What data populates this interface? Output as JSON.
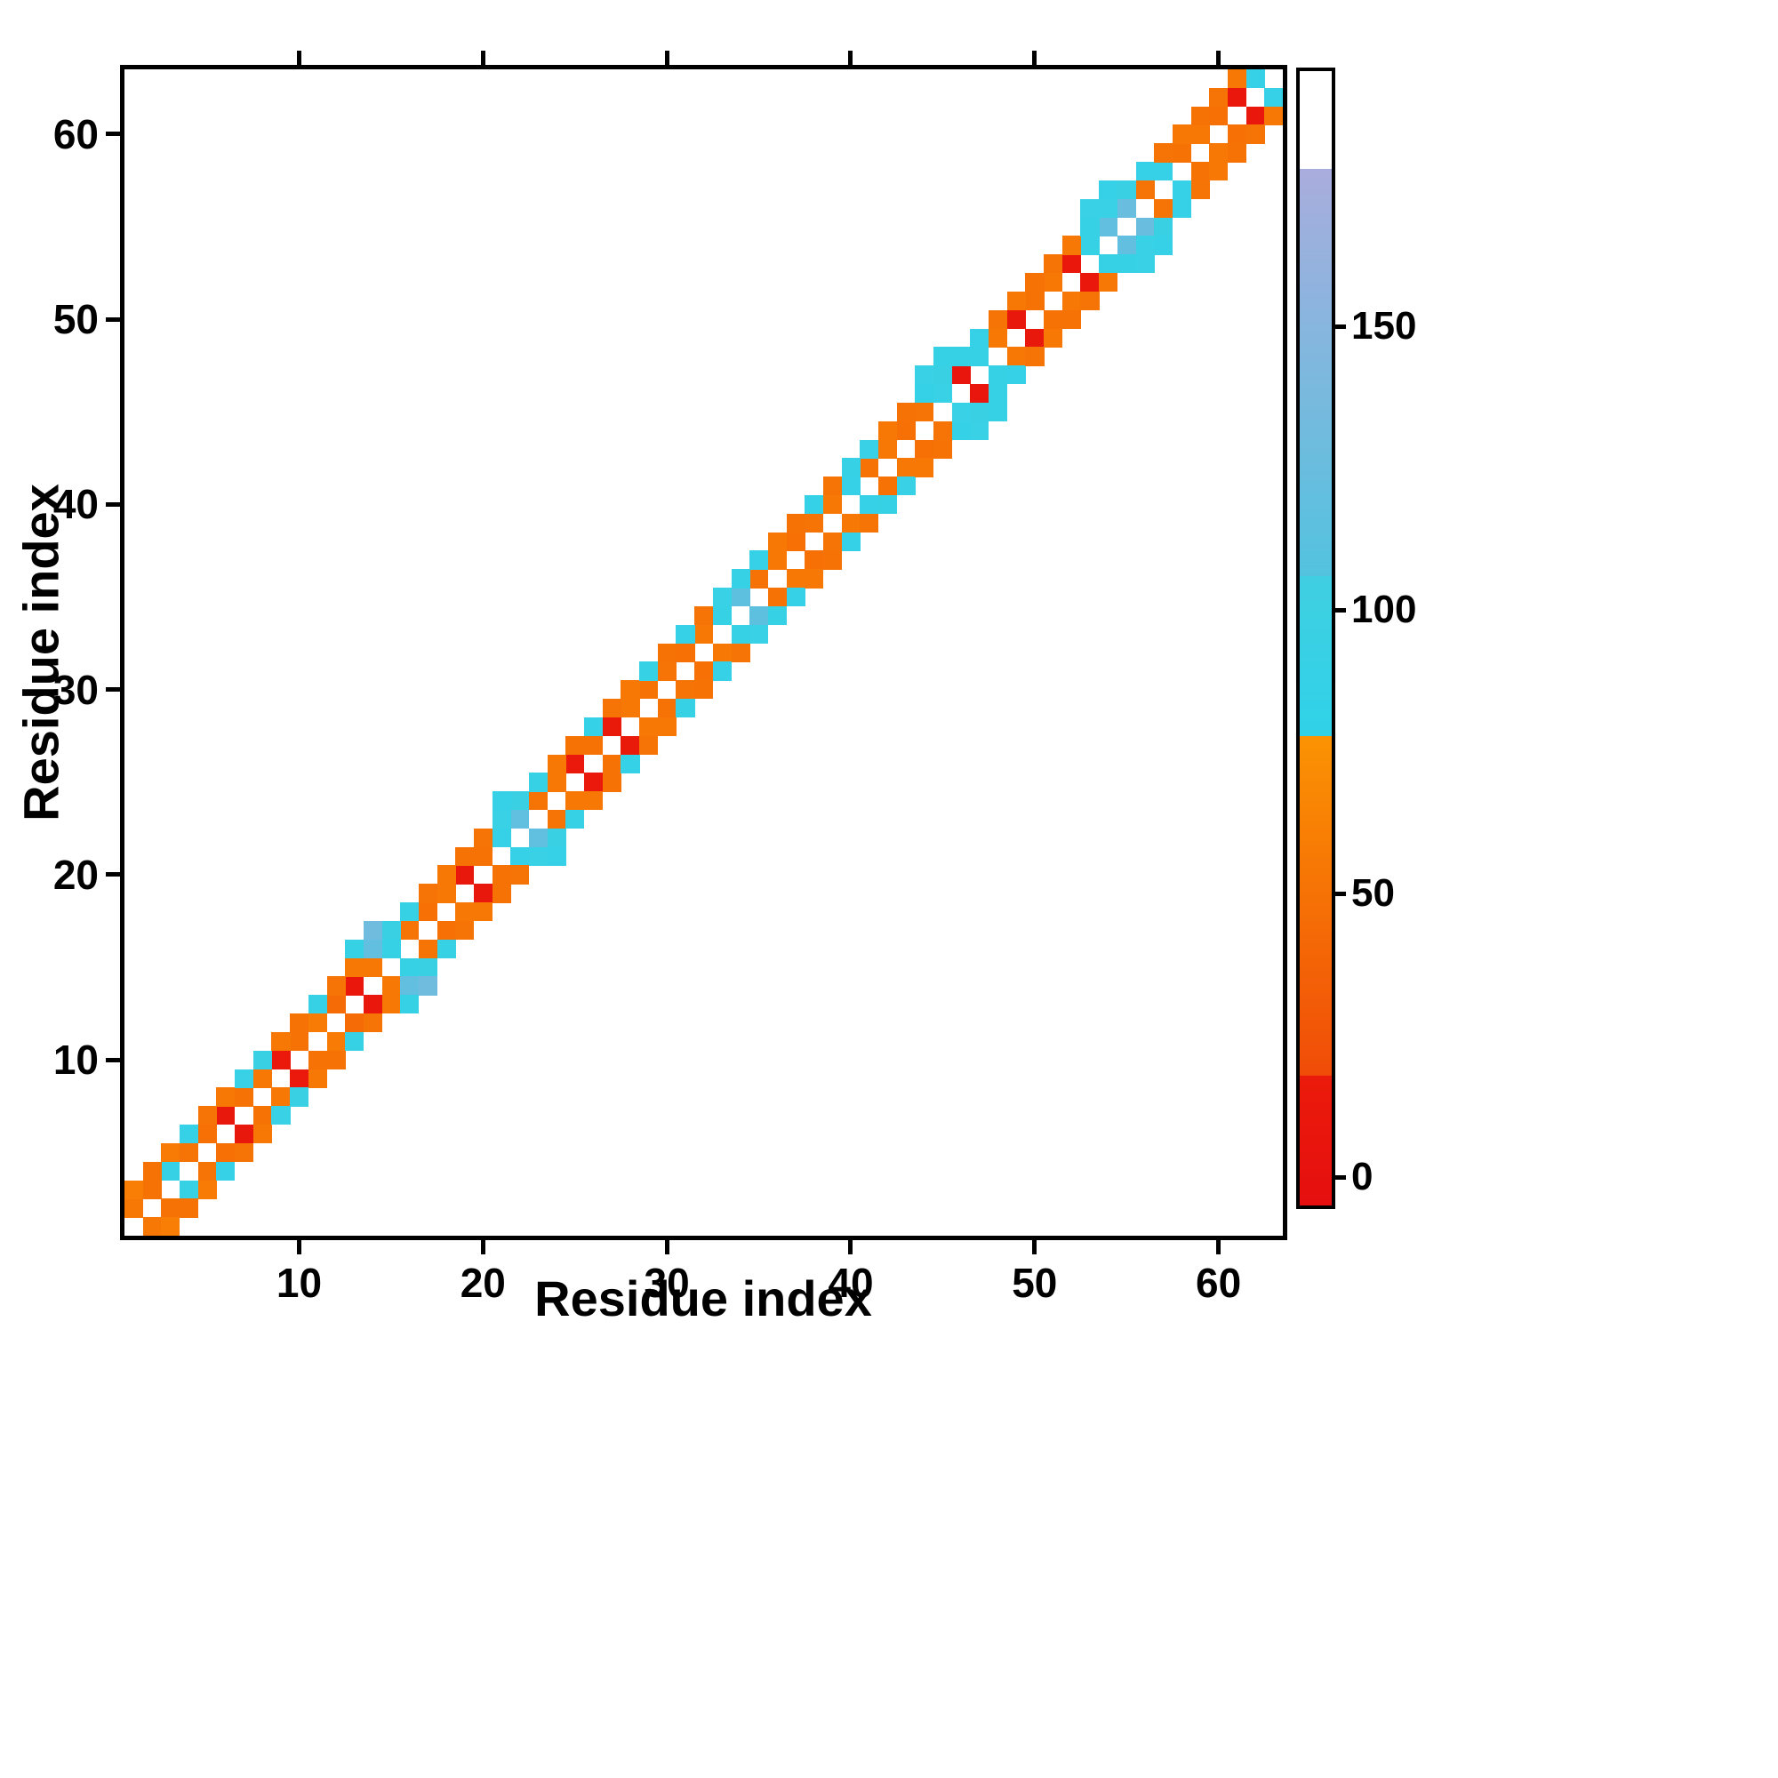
{
  "chart_data": {
    "type": "heatmap",
    "title": "",
    "xlabel": "Residue index",
    "ylabel": "Residue index",
    "x_range": [
      0.5,
      63.5
    ],
    "y_range": [
      0.5,
      63.5
    ],
    "x_ticks": [
      10,
      20,
      30,
      40,
      50,
      60
    ],
    "y_ticks": [
      10,
      20,
      30,
      40,
      50,
      60
    ],
    "n_residues": 63,
    "symmetric": true,
    "diagonal_masked": true,
    "grid": false,
    "legend_position": "none",
    "colorbar": {
      "ticks": [
        0,
        50,
        100,
        150
      ],
      "range": [
        -5,
        195
      ]
    },
    "colormap": [
      {
        "upto": 18,
        "from": "#e50f0f",
        "to": "#eb1b0b"
      },
      {
        "upto": 78,
        "from": "#f04c08",
        "to": "#fb9303"
      },
      {
        "upto": 106,
        "from": "#30d2e8",
        "to": "#40cfe2"
      },
      {
        "upto": 178,
        "from": "#52c3df",
        "to": "#a9addd"
      },
      {
        "upto": 196,
        "from": "#ffffff",
        "to": "#ffffff"
      }
    ],
    "cells": [
      [
        1,
        2,
        55
      ],
      [
        2,
        3,
        50
      ],
      [
        3,
        4,
        90
      ],
      [
        4,
        5,
        52
      ],
      [
        5,
        6,
        48
      ],
      [
        6,
        7,
        12
      ],
      [
        7,
        8,
        50
      ],
      [
        8,
        9,
        55
      ],
      [
        9,
        10,
        15
      ],
      [
        10,
        11,
        50
      ],
      [
        11,
        12,
        58
      ],
      [
        12,
        13,
        45
      ],
      [
        13,
        14,
        10
      ],
      [
        14,
        15,
        55
      ],
      [
        15,
        16,
        90
      ],
      [
        16,
        17,
        52
      ],
      [
        17,
        18,
        48
      ],
      [
        18,
        19,
        55
      ],
      [
        19,
        20,
        12
      ],
      [
        20,
        21,
        50
      ],
      [
        21,
        22,
        88
      ],
      [
        22,
        23,
        118
      ],
      [
        23,
        24,
        52
      ],
      [
        24,
        25,
        55
      ],
      [
        25,
        26,
        14
      ],
      [
        26,
        27,
        50
      ],
      [
        27,
        28,
        16
      ],
      [
        28,
        29,
        55
      ],
      [
        29,
        30,
        50
      ],
      [
        30,
        31,
        52
      ],
      [
        31,
        32,
        48
      ],
      [
        32,
        33,
        55
      ],
      [
        33,
        34,
        90
      ],
      [
        34,
        35,
        115
      ],
      [
        35,
        36,
        50
      ],
      [
        36,
        37,
        55
      ],
      [
        37,
        38,
        48
      ],
      [
        38,
        39,
        52
      ],
      [
        39,
        40,
        55
      ],
      [
        40,
        41,
        88
      ],
      [
        41,
        42,
        50
      ],
      [
        42,
        43,
        55
      ],
      [
        43,
        44,
        48
      ],
      [
        44,
        45,
        52
      ],
      [
        45,
        46,
        92
      ],
      [
        46,
        47,
        8
      ],
      [
        47,
        48,
        90
      ],
      [
        48,
        49,
        55
      ],
      [
        49,
        50,
        12
      ],
      [
        50,
        51,
        50
      ],
      [
        51,
        52,
        55
      ],
      [
        52,
        53,
        10
      ],
      [
        53,
        54,
        90
      ],
      [
        54,
        55,
        120
      ],
      [
        55,
        56,
        125
      ],
      [
        56,
        57,
        52
      ],
      [
        57,
        58,
        88
      ],
      [
        58,
        59,
        50
      ],
      [
        59,
        60,
        55
      ],
      [
        60,
        61,
        48
      ],
      [
        61,
        62,
        10
      ],
      [
        62,
        63,
        88
      ],
      [
        1,
        3,
        60
      ],
      [
        2,
        4,
        50
      ],
      [
        3,
        5,
        58
      ],
      [
        4,
        6,
        88
      ],
      [
        5,
        7,
        52
      ],
      [
        6,
        8,
        55
      ],
      [
        7,
        9,
        92
      ],
      [
        8,
        10,
        95
      ],
      [
        9,
        11,
        55
      ],
      [
        10,
        12,
        50
      ],
      [
        11,
        13,
        90
      ],
      [
        12,
        14,
        52
      ],
      [
        13,
        15,
        55
      ],
      [
        14,
        16,
        120
      ],
      [
        15,
        17,
        95
      ],
      [
        16,
        18,
        90
      ],
      [
        17,
        19,
        52
      ],
      [
        18,
        20,
        55
      ],
      [
        19,
        21,
        50
      ],
      [
        20,
        22,
        52
      ],
      [
        21,
        23,
        92
      ],
      [
        22,
        24,
        95
      ],
      [
        23,
        25,
        90
      ],
      [
        24,
        26,
        55
      ],
      [
        25,
        27,
        50
      ],
      [
        26,
        28,
        85
      ],
      [
        27,
        29,
        52
      ],
      [
        28,
        30,
        55
      ],
      [
        29,
        31,
        90
      ],
      [
        30,
        32,
        50
      ],
      [
        31,
        33,
        88
      ],
      [
        32,
        34,
        52
      ],
      [
        33,
        35,
        92
      ],
      [
        34,
        36,
        90
      ],
      [
        35,
        37,
        88
      ],
      [
        36,
        38,
        55
      ],
      [
        37,
        39,
        50
      ],
      [
        38,
        40,
        86
      ],
      [
        39,
        41,
        52
      ],
      [
        40,
        42,
        90
      ],
      [
        41,
        43,
        92
      ],
      [
        42,
        44,
        55
      ],
      [
        43,
        45,
        50
      ],
      [
        44,
        46,
        86
      ],
      [
        45,
        47,
        95
      ],
      [
        46,
        48,
        90
      ],
      [
        47,
        49,
        88
      ],
      [
        48,
        50,
        52
      ],
      [
        49,
        51,
        55
      ],
      [
        50,
        52,
        50
      ],
      [
        51,
        53,
        52
      ],
      [
        52,
        54,
        55
      ],
      [
        53,
        55,
        90
      ],
      [
        54,
        56,
        92
      ],
      [
        55,
        57,
        95
      ],
      [
        56,
        58,
        88
      ],
      [
        57,
        59,
        52
      ],
      [
        58,
        60,
        55
      ],
      [
        59,
        61,
        50
      ],
      [
        60,
        62,
        52
      ],
      [
        61,
        63,
        55
      ],
      [
        13,
        16,
        90
      ],
      [
        14,
        17,
        130
      ],
      [
        21,
        24,
        88
      ],
      [
        44,
        47,
        92
      ],
      [
        45,
        48,
        90
      ],
      [
        53,
        56,
        92
      ],
      [
        54,
        57,
        88
      ]
    ]
  }
}
